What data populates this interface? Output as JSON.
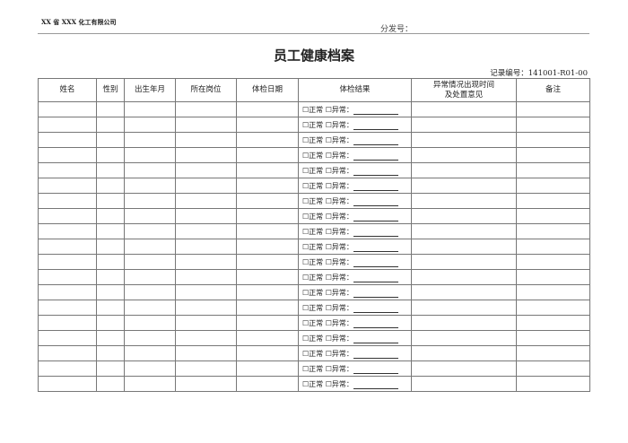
{
  "header": {
    "company": "XX 省 XXX 化工有限公司",
    "distribution_label": "分发号："
  },
  "title": "员工健康档案",
  "record_no": "记录编号：141001-R01-00",
  "table": {
    "columns": [
      "姓名",
      "性别",
      "出生年月",
      "所在岗位",
      "体检日期",
      "体检结果",
      "异常情况出现时间\n及处置意见",
      "备注"
    ],
    "columns_line2": "及处置意见",
    "column7_line1": "异常情况出现时间",
    "result_template": {
      "normal": "☐正常",
      "abnormal": "☐异常："
    },
    "row_count": 19
  }
}
